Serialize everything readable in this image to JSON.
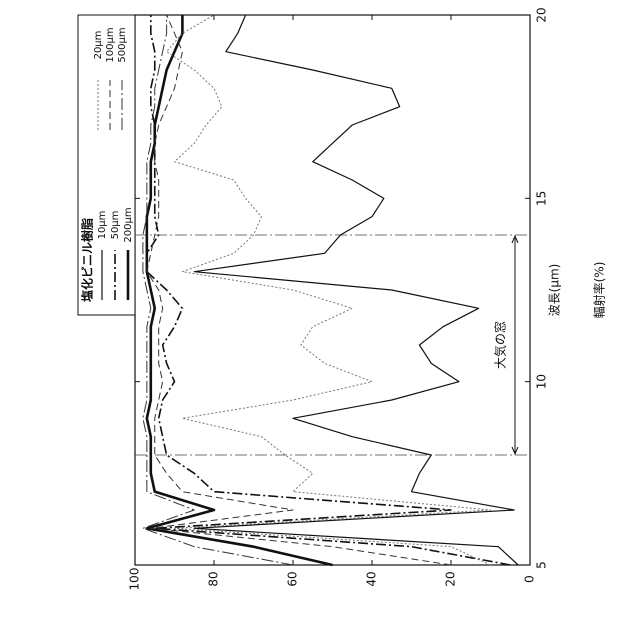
{
  "chart_data": {
    "type": "line",
    "legend_title": "塩化ビニル樹脂",
    "xlabel": "波長(μm)",
    "ylabel": "輻射率(%)",
    "annotation": "大気の窓",
    "window": [
      8,
      14
    ],
    "x": [
      5,
      5.5,
      6,
      6.5,
      7,
      7.5,
      8,
      8.5,
      9,
      9.5,
      10,
      10.5,
      11,
      11.5,
      12,
      12.5,
      13,
      13.5,
      14,
      14.5,
      15,
      15.5,
      16,
      16.5,
      17,
      17.5,
      18,
      18.5,
      19,
      19.5,
      20
    ],
    "xlim": [
      5,
      20
    ],
    "xticks": [
      5,
      10,
      15,
      20
    ],
    "ylim": [
      0,
      100
    ],
    "yticks": [
      0,
      20,
      40,
      60,
      80,
      100
    ],
    "series": [
      {
        "name": "10μm",
        "color": "#111",
        "width": 1.2,
        "dash": "",
        "values": [
          3,
          8,
          85,
          4,
          30,
          28,
          25,
          45,
          60,
          35,
          18,
          25,
          28,
          22,
          13,
          35,
          85,
          52,
          48,
          40,
          37,
          45,
          55,
          50,
          45,
          33,
          35,
          55,
          77,
          74,
          72
        ]
      },
      {
        "name": "50μm",
        "color": "#111",
        "width": 1.6,
        "dash": "10 3 2 3",
        "values": [
          5,
          30,
          95,
          20,
          80,
          85,
          92,
          93,
          94,
          93,
          90,
          92,
          93,
          90,
          88,
          92,
          97,
          97,
          94,
          95,
          95,
          95,
          95,
          95,
          95,
          96,
          96,
          95,
          95,
          96,
          96
        ]
      },
      {
        "name": "200μm",
        "color": "#111",
        "width": 2.6,
        "dash": "",
        "values": [
          50,
          70,
          97,
          80,
          95,
          96,
          96,
          96,
          97,
          96,
          96,
          96,
          96,
          96,
          95,
          96,
          97,
          97,
          97,
          97,
          96,
          96,
          96,
          95,
          95,
          94,
          93,
          92,
          90,
          88,
          88
        ]
      },
      {
        "name": "20μm",
        "color": "#777",
        "width": 1,
        "dash": "2 2",
        "values": [
          10,
          20,
          90,
          10,
          60,
          55,
          62,
          68,
          88,
          60,
          40,
          52,
          58,
          55,
          45,
          60,
          88,
          75,
          70,
          68,
          72,
          75,
          90,
          85,
          82,
          78,
          80,
          85,
          92,
          88,
          80
        ]
      },
      {
        "name": "100μm",
        "color": "#333",
        "width": 1,
        "dash": "7 4",
        "values": [
          20,
          50,
          96,
          60,
          88,
          92,
          95,
          95,
          95,
          94,
          93,
          94,
          94,
          94,
          93,
          94,
          97,
          96,
          95,
          94,
          94,
          94,
          95,
          95,
          94,
          92,
          90,
          89,
          88,
          90,
          92
        ]
      },
      {
        "name": "500μm",
        "color": "#333",
        "width": 1,
        "dash": "12 3 2 3",
        "values": [
          60,
          85,
          98,
          85,
          97,
          97,
          97,
          97,
          98,
          97,
          97,
          97,
          97,
          97,
          96,
          97,
          98,
          98,
          98,
          97,
          97,
          97,
          97,
          96,
          96,
          95,
          95,
          94,
          93,
          92,
          92
        ]
      }
    ]
  }
}
